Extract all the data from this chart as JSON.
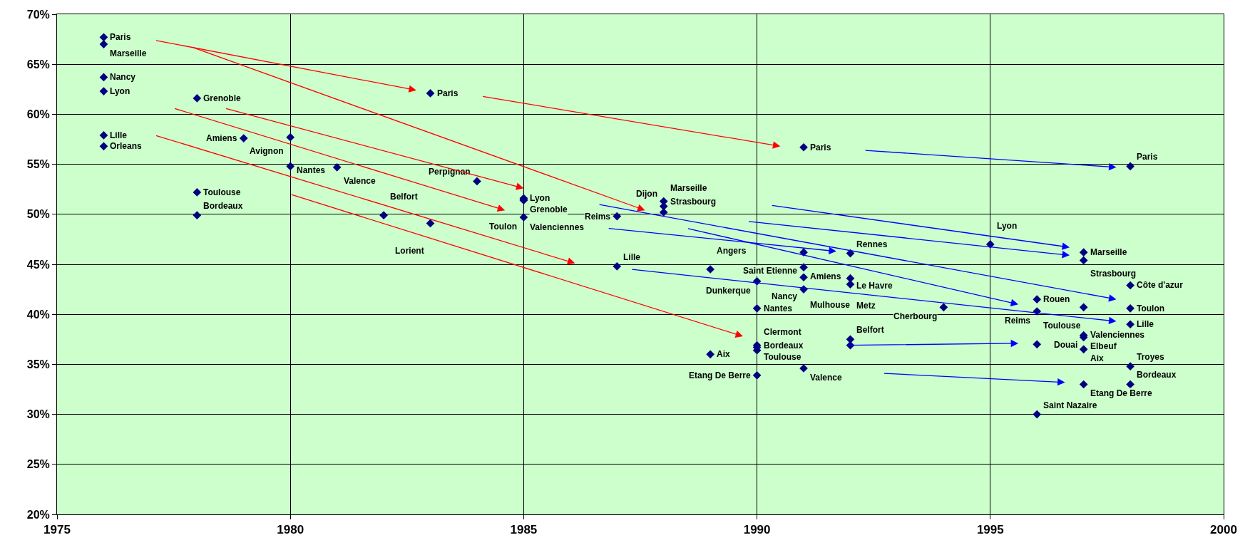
{
  "chart_data": {
    "type": "scatter",
    "xlim": [
      1975,
      2000
    ],
    "ylim": [
      20,
      70
    ],
    "xticks": [
      1975,
      1980,
      1985,
      1990,
      1995,
      2000
    ],
    "yticks": [
      {
        "value": 20,
        "label": "20%"
      },
      {
        "value": 25,
        "label": "25%"
      },
      {
        "value": 30,
        "label": "30%"
      },
      {
        "value": 35,
        "label": "35%"
      },
      {
        "value": 40,
        "label": "40%"
      },
      {
        "value": 45,
        "label": "45%"
      },
      {
        "value": 50,
        "label": "50%"
      },
      {
        "value": 55,
        "label": "55%"
      },
      {
        "value": 60,
        "label": "60%"
      },
      {
        "value": 65,
        "label": "65%"
      },
      {
        "value": 70,
        "label": "70%"
      }
    ],
    "grid": true,
    "series": [
      {
        "type": "scatter",
        "color": "#000080",
        "marker": "diamond",
        "x": [
          1976,
          1976,
          1976,
          1976,
          1976,
          1976,
          1978,
          1978,
          1978,
          1979,
          1980,
          1980,
          1981,
          1982,
          1983,
          1983,
          1984,
          1985,
          1985,
          1985,
          1985,
          1987,
          1987,
          1988,
          1988,
          1988,
          1989,
          1989,
          1990,
          1990,
          1990,
          1990,
          1990,
          1990,
          1991,
          1991,
          1991,
          1991,
          1991,
          1991,
          1992,
          1992,
          1992,
          1992,
          1992,
          1994,
          1995,
          1996,
          1996,
          1996,
          1996,
          1997,
          1997,
          1997,
          1997,
          1997,
          1997,
          1997,
          1998,
          1998,
          1998,
          1998,
          1998,
          1998
        ],
        "values": [
          67.7,
          67.0,
          63.7,
          62.3,
          57.9,
          56.8,
          61.6,
          52.2,
          49.9,
          57.6,
          57.7,
          54.8,
          54.7,
          49.9,
          49.1,
          62.1,
          53.3,
          51.6,
          51.5,
          51.4,
          49.7,
          49.8,
          44.8,
          51.3,
          50.8,
          50.2,
          44.5,
          36.0,
          43.3,
          40.6,
          36.9,
          36.7,
          36.4,
          33.9,
          56.7,
          46.2,
          44.7,
          43.7,
          42.5,
          34.6,
          46.1,
          43.6,
          43.0,
          37.5,
          36.9,
          40.7,
          47.0,
          41.5,
          40.3,
          37.0,
          30.0,
          46.2,
          45.4,
          40.7,
          37.9,
          37.7,
          36.5,
          33.0,
          54.8,
          42.9,
          40.6,
          39.0,
          34.8,
          33.0
        ]
      }
    ],
    "annotations": [
      {
        "text": "Paris",
        "x": 1976,
        "y": 67.7
      },
      {
        "text": "Marseille",
        "x": 1976,
        "y": 67.0
      },
      {
        "text": "Nancy",
        "x": 1976,
        "y": 63.7
      },
      {
        "text": "Lyon",
        "x": 1976,
        "y": 62.3
      },
      {
        "text": "Lille",
        "x": 1976,
        "y": 57.9
      },
      {
        "text": "Orleans",
        "x": 1976,
        "y": 56.8
      },
      {
        "text": "Grenoble",
        "x": 1978,
        "y": 61.6
      },
      {
        "text": "Toulouse",
        "x": 1978,
        "y": 52.2
      },
      {
        "text": "Bordeaux",
        "x": 1978,
        "y": 49.9
      },
      {
        "text": "Amiens",
        "x": 1979,
        "y": 57.6
      },
      {
        "text": "Avignon",
        "x": 1980,
        "y": 57.7
      },
      {
        "text": "Nantes",
        "x": 1980,
        "y": 54.8
      },
      {
        "text": "Valence",
        "x": 1981,
        "y": 54.7
      },
      {
        "text": "Belfort",
        "x": 1982,
        "y": 49.9
      },
      {
        "text": "Lorient",
        "x": 1983,
        "y": 49.1
      },
      {
        "text": "Paris",
        "x": 1983,
        "y": 62.1
      },
      {
        "text": "Perpignan",
        "x": 1984,
        "y": 53.3
      },
      {
        "text": "Lyon",
        "x": 1985,
        "y": 51.6
      },
      {
        "text": "Valenciennes",
        "x": 1985,
        "y": 51.5
      },
      {
        "text": "Grenoble",
        "x": 1985,
        "y": 51.4
      },
      {
        "text": "Toulon",
        "x": 1985,
        "y": 49.7
      },
      {
        "text": "Reims",
        "x": 1987,
        "y": 49.8
      },
      {
        "text": "Lille",
        "x": 1987,
        "y": 44.8
      },
      {
        "text": "Strasbourg",
        "x": 1988,
        "y": 51.3
      },
      {
        "text": "Marseille",
        "x": 1988,
        "y": 50.8
      },
      {
        "text": "Dijon",
        "x": 1988,
        "y": 50.2
      },
      {
        "text": "Angers",
        "x": 1989,
        "y": 44.5
      },
      {
        "text": "Aix",
        "x": 1989,
        "y": 36.0
      },
      {
        "text": "Dunkerque",
        "x": 1990,
        "y": 43.3
      },
      {
        "text": "Nantes",
        "x": 1990,
        "y": 40.6
      },
      {
        "text": "Bordeaux",
        "x": 1990,
        "y": 36.9
      },
      {
        "text": "Toulouse",
        "x": 1990,
        "y": 36.7
      },
      {
        "text": "Clermont",
        "x": 1990,
        "y": 36.4
      },
      {
        "text": "Etang De Berre",
        "x": 1990,
        "y": 33.9
      },
      {
        "text": "Paris",
        "x": 1991,
        "y": 56.7
      },
      {
        "text": "Saint Etienne",
        "x": 1991,
        "y": 46.2
      },
      {
        "text": "Amiens",
        "x": 1991,
        "y": 44.7
      },
      {
        "text": "Mulhouse",
        "x": 1991,
        "y": 43.7
      },
      {
        "text": "Nancy",
        "x": 1991,
        "y": 42.5
      },
      {
        "text": "Valence",
        "x": 1991,
        "y": 34.6
      },
      {
        "text": "Rennes",
        "x": 1992,
        "y": 46.1
      },
      {
        "text": "Le Havre",
        "x": 1992,
        "y": 43.6
      },
      {
        "text": "Metz",
        "x": 1992,
        "y": 43.0
      },
      {
        "text": "Belfort",
        "x": 1992,
        "y": 37.5
      },
      {
        "text": "Cherbourg",
        "x": 1994,
        "y": 40.7
      },
      {
        "text": "Lyon",
        "x": 1995,
        "y": 47.0
      },
      {
        "text": "Rouen",
        "x": 1996,
        "y": 41.5
      },
      {
        "text": "Reims",
        "x": 1996,
        "y": 40.3
      },
      {
        "text": "Toulouse",
        "x": 1996,
        "y": 37.0
      },
      {
        "text": "Saint Nazaire",
        "x": 1996,
        "y": 30.0
      },
      {
        "text": "Marseille",
        "x": 1997,
        "y": 46.2
      },
      {
        "text": "Strasbourg",
        "x": 1997,
        "y": 45.4
      },
      {
        "text": "Valenciennes",
        "x": 1997,
        "y": 40.7
      },
      {
        "text": "Douai",
        "x": 1997,
        "y": 37.9
      },
      {
        "text": "Elbeuf",
        "x": 1997,
        "y": 37.7
      },
      {
        "text": "Aix",
        "x": 1997,
        "y": 36.5
      },
      {
        "text": "Etang De Berre",
        "x": 1997,
        "y": 33.0
      },
      {
        "text": "Paris",
        "x": 1998,
        "y": 54.8
      },
      {
        "text": "Côte d'azur",
        "x": 1998,
        "y": 42.9
      },
      {
        "text": "Toulon",
        "x": 1998,
        "y": 40.6
      },
      {
        "text": "Lille",
        "x": 1998,
        "y": 39.0
      },
      {
        "text": "Troyes",
        "x": 1998,
        "y": 34.8
      },
      {
        "text": "Bordeaux",
        "x": 1998,
        "y": 33.0
      }
    ]
  }
}
